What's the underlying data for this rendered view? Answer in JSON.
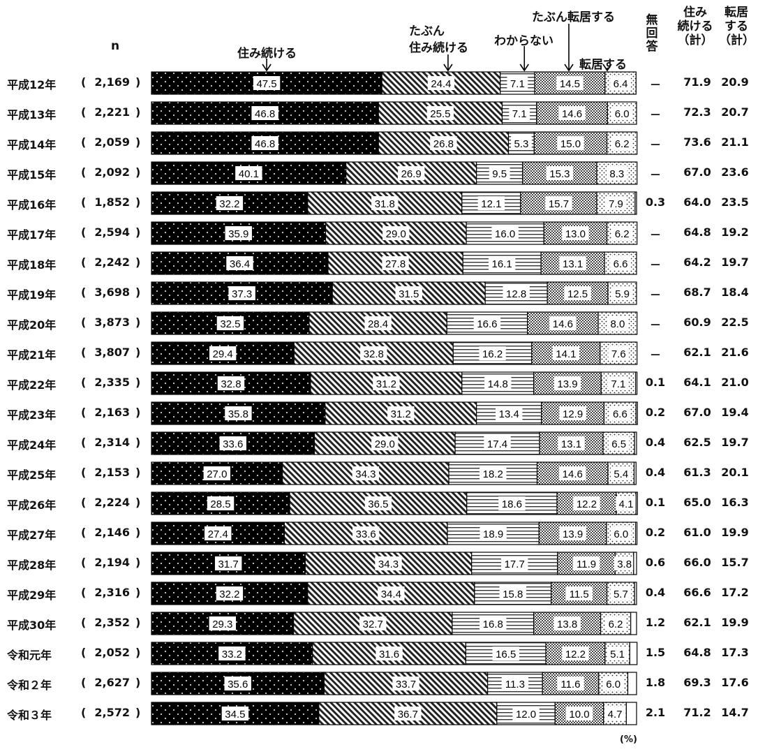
{
  "chart_data": {
    "type": "bar",
    "orientation": "horizontal",
    "stacked": true,
    "n_header": "n",
    "unit": "(%)",
    "columns": {
      "no_answer": "無回答",
      "stay_total": "住み続ける（計）",
      "move_total": "転居する（計）"
    },
    "series": [
      {
        "name": "住み続ける",
        "pattern": "dots-on-black"
      },
      {
        "name": "たぶん住み続ける",
        "pattern": "diagonal"
      },
      {
        "name": "わからない",
        "pattern": "horizontal"
      },
      {
        "name": "たぶん転居する",
        "pattern": "checker"
      },
      {
        "name": "転居する",
        "pattern": "dots-on-white"
      }
    ],
    "callouts": {
      "stay": "住み続ける",
      "maybe_stay_1": "たぶん",
      "maybe_stay_2": "住み続ける",
      "unknown": "わからない",
      "maybe_move": "たぶん転居する",
      "move": "転居する"
    },
    "rows": [
      {
        "year": "平成12年",
        "n": "2,169",
        "values": [
          47.5,
          24.4,
          7.1,
          14.5,
          6.4
        ],
        "no_answer": null,
        "no_answer_text": "－",
        "stay_total": "71.9",
        "move_total": "20.9"
      },
      {
        "year": "平成13年",
        "n": "2,221",
        "values": [
          46.8,
          25.5,
          7.1,
          14.6,
          6.0
        ],
        "no_answer": null,
        "no_answer_text": "－",
        "stay_total": "72.3",
        "move_total": "20.7"
      },
      {
        "year": "平成14年",
        "n": "2,059",
        "values": [
          46.8,
          26.8,
          5.3,
          15.0,
          6.2
        ],
        "no_answer": null,
        "no_answer_text": "－",
        "stay_total": "73.6",
        "move_total": "21.1"
      },
      {
        "year": "平成15年",
        "n": "2,092",
        "values": [
          40.1,
          26.9,
          9.5,
          15.3,
          8.3
        ],
        "no_answer": null,
        "no_answer_text": "－",
        "stay_total": "67.0",
        "move_total": "23.6"
      },
      {
        "year": "平成16年",
        "n": "1,852",
        "values": [
          32.2,
          31.8,
          12.1,
          15.7,
          7.9
        ],
        "no_answer": 0.3,
        "no_answer_text": "0.3",
        "stay_total": "64.0",
        "move_total": "23.5"
      },
      {
        "year": "平成17年",
        "n": "2,594",
        "values": [
          35.9,
          29.0,
          16.0,
          13.0,
          6.2
        ],
        "no_answer": null,
        "no_answer_text": "－",
        "stay_total": "64.8",
        "move_total": "19.2"
      },
      {
        "year": "平成18年",
        "n": "2,242",
        "values": [
          36.4,
          27.8,
          16.1,
          13.1,
          6.6
        ],
        "no_answer": null,
        "no_answer_text": "－",
        "stay_total": "64.2",
        "move_total": "19.7"
      },
      {
        "year": "平成19年",
        "n": "3,698",
        "values": [
          37.3,
          31.5,
          12.8,
          12.5,
          5.9
        ],
        "no_answer": null,
        "no_answer_text": "－",
        "stay_total": "68.7",
        "move_total": "18.4"
      },
      {
        "year": "平成20年",
        "n": "3,873",
        "values": [
          32.5,
          28.4,
          16.6,
          14.6,
          8.0
        ],
        "no_answer": null,
        "no_answer_text": "－",
        "stay_total": "60.9",
        "move_total": "22.5"
      },
      {
        "year": "平成21年",
        "n": "3,807",
        "values": [
          29.4,
          32.8,
          16.2,
          14.1,
          7.6
        ],
        "no_answer": null,
        "no_answer_text": "－",
        "stay_total": "62.1",
        "move_total": "21.6"
      },
      {
        "year": "平成22年",
        "n": "2,335",
        "values": [
          32.8,
          31.2,
          14.8,
          13.9,
          7.1
        ],
        "no_answer": 0.1,
        "no_answer_text": "0.1",
        "stay_total": "64.1",
        "move_total": "21.0"
      },
      {
        "year": "平成23年",
        "n": "2,163",
        "values": [
          35.8,
          31.2,
          13.4,
          12.9,
          6.6
        ],
        "no_answer": 0.2,
        "no_answer_text": "0.2",
        "stay_total": "67.0",
        "move_total": "19.4"
      },
      {
        "year": "平成24年",
        "n": "2,314",
        "values": [
          33.6,
          29.0,
          17.4,
          13.1,
          6.5
        ],
        "no_answer": 0.4,
        "no_answer_text": "0.4",
        "stay_total": "62.5",
        "move_total": "19.7"
      },
      {
        "year": "平成25年",
        "n": "2,153",
        "values": [
          27.0,
          34.3,
          18.2,
          14.6,
          5.4
        ],
        "no_answer": 0.4,
        "no_answer_text": "0.4",
        "stay_total": "61.3",
        "move_total": "20.1"
      },
      {
        "year": "平成26年",
        "n": "2,224",
        "values": [
          28.5,
          36.5,
          18.6,
          12.2,
          4.1
        ],
        "no_answer": 0.1,
        "no_answer_text": "0.1",
        "stay_total": "65.0",
        "move_total": "16.3"
      },
      {
        "year": "平成27年",
        "n": "2,146",
        "values": [
          27.4,
          33.6,
          18.9,
          13.9,
          6.0
        ],
        "no_answer": 0.2,
        "no_answer_text": "0.2",
        "stay_total": "61.0",
        "move_total": "19.9"
      },
      {
        "year": "平成28年",
        "n": "2,194",
        "values": [
          31.7,
          34.3,
          17.7,
          11.9,
          3.8
        ],
        "no_answer": 0.6,
        "no_answer_text": "0.6",
        "stay_total": "66.0",
        "move_total": "15.7"
      },
      {
        "year": "平成29年",
        "n": "2,316",
        "values": [
          32.2,
          34.4,
          15.8,
          11.5,
          5.7
        ],
        "no_answer": 0.4,
        "no_answer_text": "0.4",
        "stay_total": "66.6",
        "move_total": "17.2"
      },
      {
        "year": "平成30年",
        "n": "2,352",
        "values": [
          29.3,
          32.7,
          16.8,
          13.8,
          6.2
        ],
        "no_answer": 1.2,
        "no_answer_text": "1.2",
        "stay_total": "62.1",
        "move_total": "19.9"
      },
      {
        "year": "令和元年",
        "n": "2,052",
        "values": [
          33.2,
          31.6,
          16.5,
          12.2,
          5.1
        ],
        "no_answer": 1.5,
        "no_answer_text": "1.5",
        "stay_total": "64.8",
        "move_total": "17.3"
      },
      {
        "year": "令和２年",
        "n": "2,627",
        "values": [
          35.6,
          33.7,
          11.3,
          11.6,
          6.0
        ],
        "no_answer": 1.8,
        "no_answer_text": "1.8",
        "stay_total": "69.3",
        "move_total": "17.6"
      },
      {
        "year": "令和３年",
        "n": "2,572",
        "values": [
          34.5,
          36.7,
          12.0,
          10.0,
          4.7
        ],
        "no_answer": 2.1,
        "no_answer_text": "2.1",
        "stay_total": "71.2",
        "move_total": "14.7"
      }
    ]
  }
}
